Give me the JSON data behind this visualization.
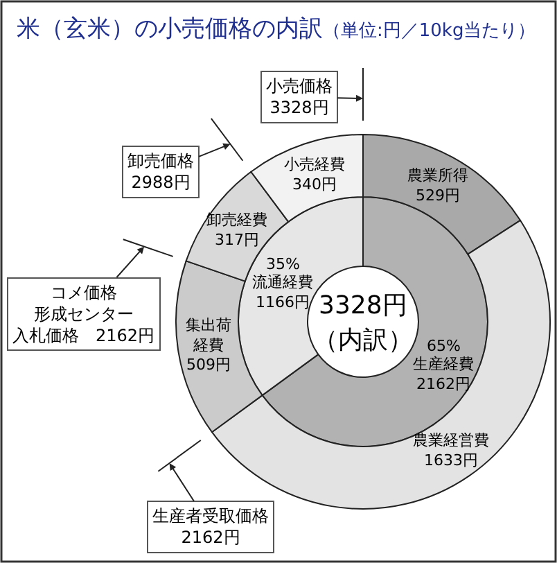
{
  "chart_data": [
    {
      "type": "donut",
      "title": "米（玄米）の小売価格の内訳",
      "subtitle": "（単位:円／10kg当たり）",
      "categories": [
        "生産経費",
        "流通経費"
      ],
      "values": [
        2162,
        1166
      ],
      "colors": [
        "#b2b2b2",
        "#e6e6e6"
      ],
      "value_labels": [
        "2162円",
        "1166円"
      ],
      "annotations": [
        "3328円",
        "（内訳）",
        {
          "text": "65%",
          "x": "生産経費"
        },
        {
          "text": "35%",
          "x": "流通経費"
        }
      ]
    },
    {
      "type": "donut",
      "categories": [
        "農業所得",
        "農業経営費",
        "集出荷経費",
        "卸売経費",
        "小売経費"
      ],
      "values": [
        529,
        1633,
        509,
        317,
        340
      ],
      "colors": [
        "#a9a9a9",
        "#e3e3e3",
        "#cbcbcb",
        "#d9d9d9",
        "#f2f2f2"
      ],
      "value_labels": [
        "529円",
        "1633円",
        "509円",
        "317円",
        "340円"
      ],
      "annotations": [
        "小売価格\n3328円",
        "卸売価格\n2988円",
        "コメ価格形成センター入札価格　2162円",
        "生産者受取価格\n2162円"
      ]
    }
  ]
}
